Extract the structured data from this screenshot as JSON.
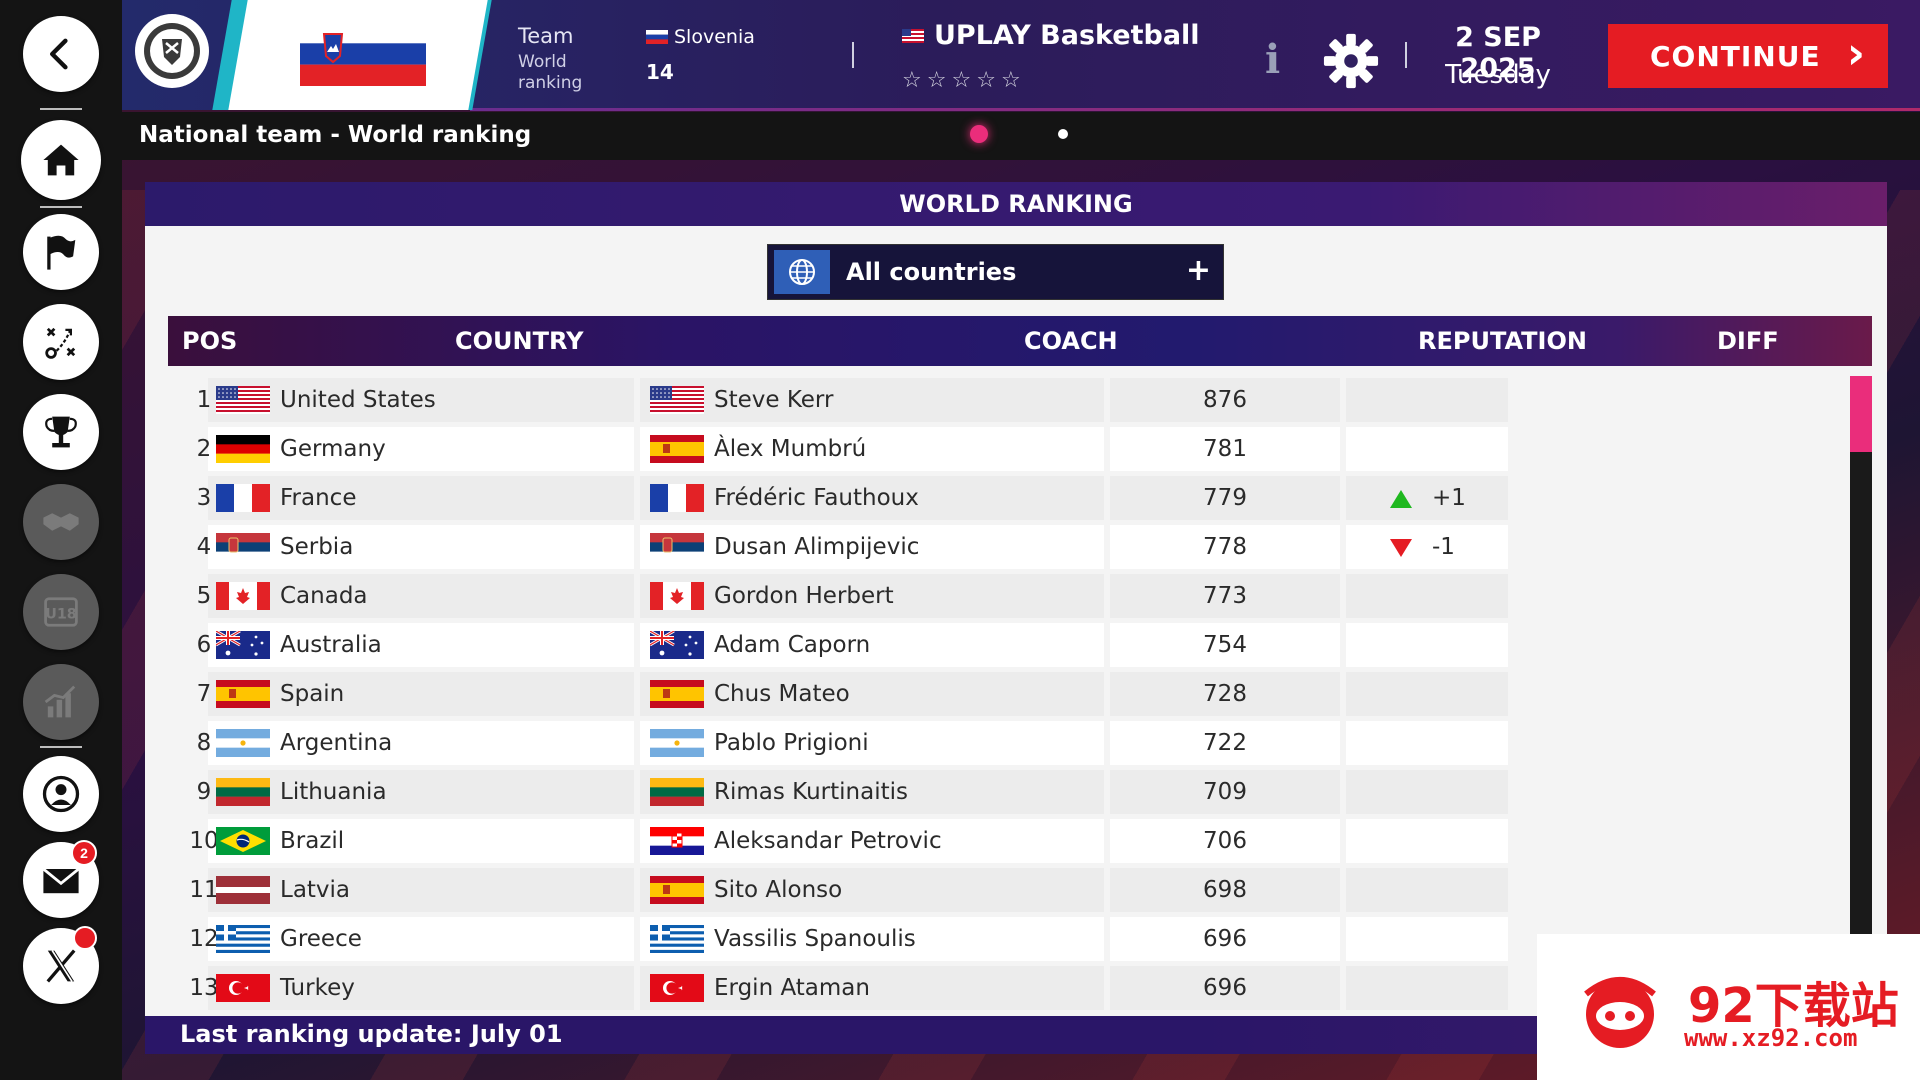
{
  "topbar": {
    "team_label": "Team",
    "team_sub": "World ranking",
    "country": "Slovenia",
    "rank": "14",
    "league": "UPLAY Basketball",
    "date": "2 SEP 2025",
    "weekday": "Tuesday",
    "continue_label": "CONTINUE"
  },
  "breadcrumb": "National team - World ranking",
  "panel": {
    "title": "WORLD RANKING",
    "filter_label": "All countries",
    "filter_plus": "+",
    "columns": {
      "pos": "POS",
      "country": "COUNTRY",
      "coach": "COACH",
      "reputation": "REPUTATION",
      "diff": "DIFF"
    },
    "footer": "Last ranking update: July 01"
  },
  "rows": [
    {
      "pos": "1",
      "country": "United States",
      "country_flag": "us",
      "coach": "Steve Kerr",
      "coach_flag": "us",
      "reputation": "876",
      "diff": "",
      "trend": ""
    },
    {
      "pos": "2",
      "country": "Germany",
      "country_flag": "de",
      "coach": "Àlex Mumbrú",
      "coach_flag": "es",
      "reputation": "781",
      "diff": "",
      "trend": ""
    },
    {
      "pos": "3",
      "country": "France",
      "country_flag": "fr",
      "coach": "Frédéric Fauthoux",
      "coach_flag": "fr",
      "reputation": "779",
      "diff": "+1",
      "trend": "up"
    },
    {
      "pos": "4",
      "country": "Serbia",
      "country_flag": "rs",
      "coach": "Dusan Alimpijevic",
      "coach_flag": "rs",
      "reputation": "778",
      "diff": "-1",
      "trend": "down"
    },
    {
      "pos": "5",
      "country": "Canada",
      "country_flag": "ca",
      "coach": "Gordon Herbert",
      "coach_flag": "ca",
      "reputation": "773",
      "diff": "",
      "trend": ""
    },
    {
      "pos": "6",
      "country": "Australia",
      "country_flag": "au",
      "coach": "Adam Caporn",
      "coach_flag": "au",
      "reputation": "754",
      "diff": "",
      "trend": ""
    },
    {
      "pos": "7",
      "country": "Spain",
      "country_flag": "es",
      "coach": "Chus Mateo",
      "coach_flag": "es",
      "reputation": "728",
      "diff": "",
      "trend": ""
    },
    {
      "pos": "8",
      "country": "Argentina",
      "country_flag": "ar",
      "coach": "Pablo Prigioni",
      "coach_flag": "ar",
      "reputation": "722",
      "diff": "",
      "trend": ""
    },
    {
      "pos": "9",
      "country": "Lithuania",
      "country_flag": "lt",
      "coach": "Rimas Kurtinaitis",
      "coach_flag": "lt",
      "reputation": "709",
      "diff": "",
      "trend": ""
    },
    {
      "pos": "10",
      "country": "Brazil",
      "country_flag": "br",
      "coach": "Aleksandar Petrovic",
      "coach_flag": "hr",
      "reputation": "706",
      "diff": "",
      "trend": ""
    },
    {
      "pos": "11",
      "country": "Latvia",
      "country_flag": "lv",
      "coach": "Sito Alonso",
      "coach_flag": "es",
      "reputation": "698",
      "diff": "",
      "trend": ""
    },
    {
      "pos": "12",
      "country": "Greece",
      "country_flag": "gr",
      "coach": "Vassilis Spanoulis",
      "coach_flag": "gr",
      "reputation": "696",
      "diff": "",
      "trend": ""
    },
    {
      "pos": "13",
      "country": "Turkey",
      "country_flag": "tr",
      "coach": "Ergin Ataman",
      "coach_flag": "tr",
      "reputation": "696",
      "diff": "",
      "trend": ""
    }
  ],
  "sidebar": {
    "items": [
      {
        "name": "back",
        "icon": "arrow-left-icon"
      },
      {
        "name": "home",
        "icon": "home-icon"
      },
      {
        "name": "team",
        "icon": "flag-icon"
      },
      {
        "name": "tactics",
        "icon": "tactics-icon"
      },
      {
        "name": "competitions",
        "icon": "trophy-icon"
      },
      {
        "name": "transfers",
        "icon": "handshake-icon"
      },
      {
        "name": "youth",
        "icon": "u18-icon"
      },
      {
        "name": "finances",
        "icon": "finance-chart-icon"
      },
      {
        "name": "profile",
        "icon": "user-icon"
      },
      {
        "name": "inbox",
        "icon": "mail-icon",
        "badge": "2"
      },
      {
        "name": "social",
        "icon": "x-logo-icon"
      }
    ]
  },
  "watermark": {
    "title": "92下载站",
    "url": "www.xz92.com"
  },
  "colors": {
    "accent": "#e51c23",
    "header": "#2c1a6b",
    "scroll_thumb": "#ea2d7b",
    "up": "#1fb81f",
    "down": "#e51c23"
  }
}
